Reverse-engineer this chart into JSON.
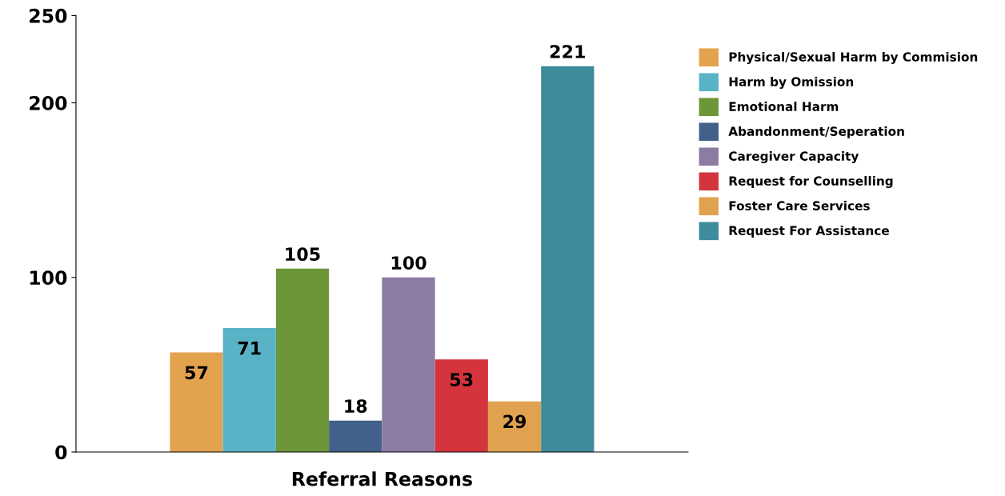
{
  "chart_data": {
    "type": "bar",
    "xlabel": "Referral Reasons",
    "categories": [
      null
    ],
    "series": [
      {
        "name": "Physical/Sexual Harm by Commision",
        "color": "#e3a24e",
        "values": [
          57
        ]
      },
      {
        "name": "Harm by Omission",
        "color": "#5ab2c6",
        "values": [
          71
        ]
      },
      {
        "name": "Emotional Harm",
        "color": "#6d9639",
        "values": [
          105
        ]
      },
      {
        "name": "Abandonment/Seperation",
        "color": "#42618a",
        "values": [
          18
        ]
      },
      {
        "name": "Caregiver Capacity",
        "color": "#8c7ca3",
        "values": [
          100
        ]
      },
      {
        "name": "Request for Counselling",
        "color": "#d4353d",
        "values": [
          53
        ]
      },
      {
        "name": "Foster Care Services",
        "color": "#e0a24f",
        "values": [
          29
        ]
      },
      {
        "name": "Request For Assistance",
        "color": "#3d8b9c",
        "values": [
          221
        ]
      }
    ],
    "ylim": [
      0,
      250
    ],
    "yticks": [
      0,
      100,
      200,
      250
    ],
    "grid": false,
    "legend": "top right",
    "data_labels": true
  }
}
